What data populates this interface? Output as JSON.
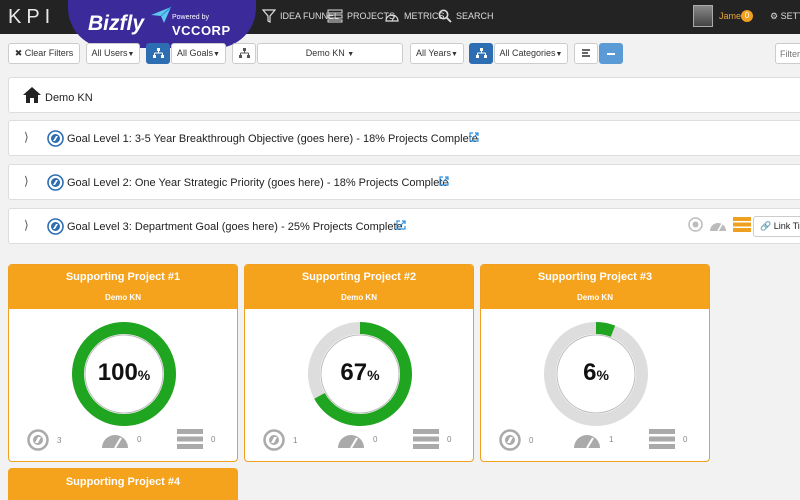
{
  "app": {
    "logo": "KPI",
    "brand": "Bizfly",
    "powered_by": "Powered by",
    "corp": "VCCORP"
  },
  "nav": [
    {
      "label": "IDEA FUNNEL",
      "icon": "funnel-icon"
    },
    {
      "label": "PROJECTS",
      "icon": "projects-icon"
    },
    {
      "label": "METRICS",
      "icon": "metrics-icon"
    },
    {
      "label": "SEARCH",
      "icon": "search-icon"
    }
  ],
  "user": {
    "name": "James",
    "badge": "0",
    "settings": "SETTINGS"
  },
  "filters": {
    "clear": "Clear Filters",
    "users": "All Users",
    "goals": "All Goals",
    "org": "Demo KN",
    "years": "All Years",
    "categories": "All Categories",
    "filter_placeholder": "Filter"
  },
  "breadcrumb": {
    "label": "Demo KN"
  },
  "goals": [
    {
      "text": "Goal Level 1: 3-5 Year Breakthrough Objective (goes here) - 18% Projects Complete"
    },
    {
      "text": "Goal Level 2: One Year Strategic Priority (goes here) - 18% Projects Complete"
    },
    {
      "text": "Goal Level 3: Department Goal (goes here) - 25% Projects Complete"
    }
  ],
  "link_tile": "Link Tile",
  "projects": [
    {
      "title": "Supporting Project #1",
      "org": "Demo KN",
      "percent": 100,
      "percent_label": "100",
      "goals": "3",
      "metrics": "0",
      "projects": "0"
    },
    {
      "title": "Supporting Project #2",
      "org": "Demo KN",
      "percent": 67,
      "percent_label": "67",
      "goals": "1",
      "metrics": "0",
      "projects": "0"
    },
    {
      "title": "Supporting Project #3",
      "org": "Demo KN",
      "percent": 6,
      "percent_label": "6",
      "goals": "0",
      "metrics": "1",
      "projects": "0"
    },
    {
      "title": "Supporting Project #4"
    }
  ],
  "colors": {
    "accent": "#f5a21c",
    "progress": "#1fa51f",
    "track": "#dddddd",
    "primary": "#2d6db2"
  }
}
